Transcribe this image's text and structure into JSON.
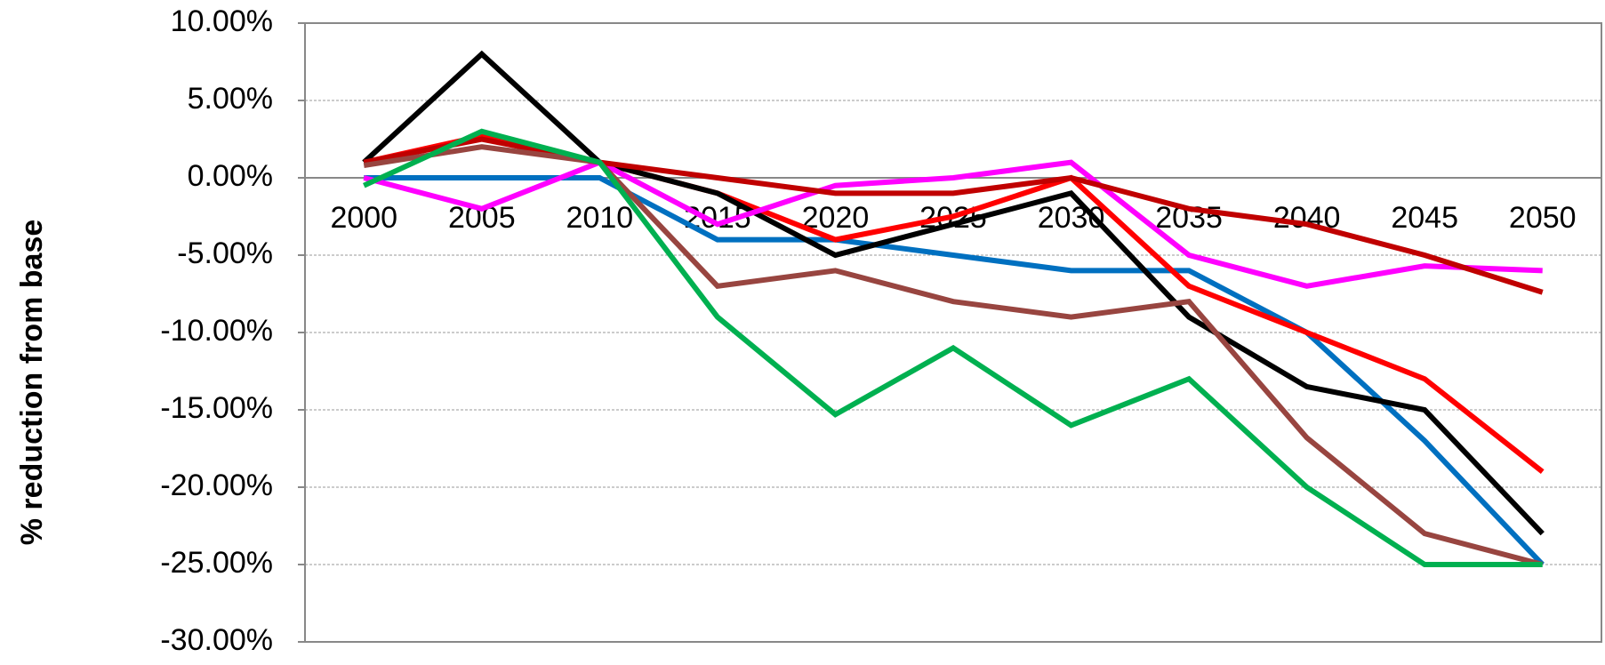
{
  "chart_data": {
    "type": "line",
    "y_label": "% reduction from base",
    "categories": [
      "2000",
      "2005",
      "2010",
      "2015",
      "2020",
      "2025",
      "2030",
      "2035",
      "2040",
      "2045",
      "2050"
    ],
    "series": [
      {
        "color": "#0070c0",
        "values": [
          0,
          0,
          0,
          -4,
          -4,
          -5,
          -6,
          -6,
          -10,
          -17,
          -25
        ]
      },
      {
        "color": "#ff0000",
        "values": [
          1,
          2.7,
          1,
          -1,
          -4,
          -2.5,
          0,
          -7,
          -10,
          -13,
          -19
        ]
      },
      {
        "color": "#000000",
        "values": [
          1,
          8,
          1,
          -1,
          -5,
          -3,
          -1,
          -9,
          -13.5,
          -15,
          -23
        ]
      },
      {
        "color": "#ff00ff",
        "values": [
          0,
          -2,
          1,
          -3,
          -0.5,
          0,
          1,
          -5,
          -7,
          -5.7,
          -6
        ]
      },
      {
        "color": "#c00000",
        "values": [
          1,
          2.5,
          1,
          0,
          -1,
          -1,
          0,
          -2,
          -3,
          -5,
          -7.4
        ]
      },
      {
        "color": "#984540",
        "values": [
          0.8,
          2,
          1,
          -7,
          -6,
          -8,
          -9,
          -8,
          -16.8,
          -23,
          -25
        ]
      },
      {
        "color": "#00b050",
        "values": [
          -0.5,
          3,
          1,
          -9,
          -15.3,
          -11,
          -16,
          -13,
          -20,
          -25,
          -25
        ]
      }
    ],
    "ylim": [
      -30,
      10
    ],
    "yticks": [
      {
        "value": -30,
        "label": "-30.00%"
      },
      {
        "value": -25,
        "label": "-25.00%"
      },
      {
        "value": -20,
        "label": "-20.00%"
      },
      {
        "value": -15,
        "label": "-15.00%"
      },
      {
        "value": -10,
        "label": "-10.00%"
      },
      {
        "value": -5,
        "label": "-5.00%"
      },
      {
        "value": 0,
        "label": "0.00%"
      },
      {
        "value": 5,
        "label": "5.00%"
      },
      {
        "value": 10,
        "label": "10.00%"
      }
    ],
    "grid": true
  }
}
